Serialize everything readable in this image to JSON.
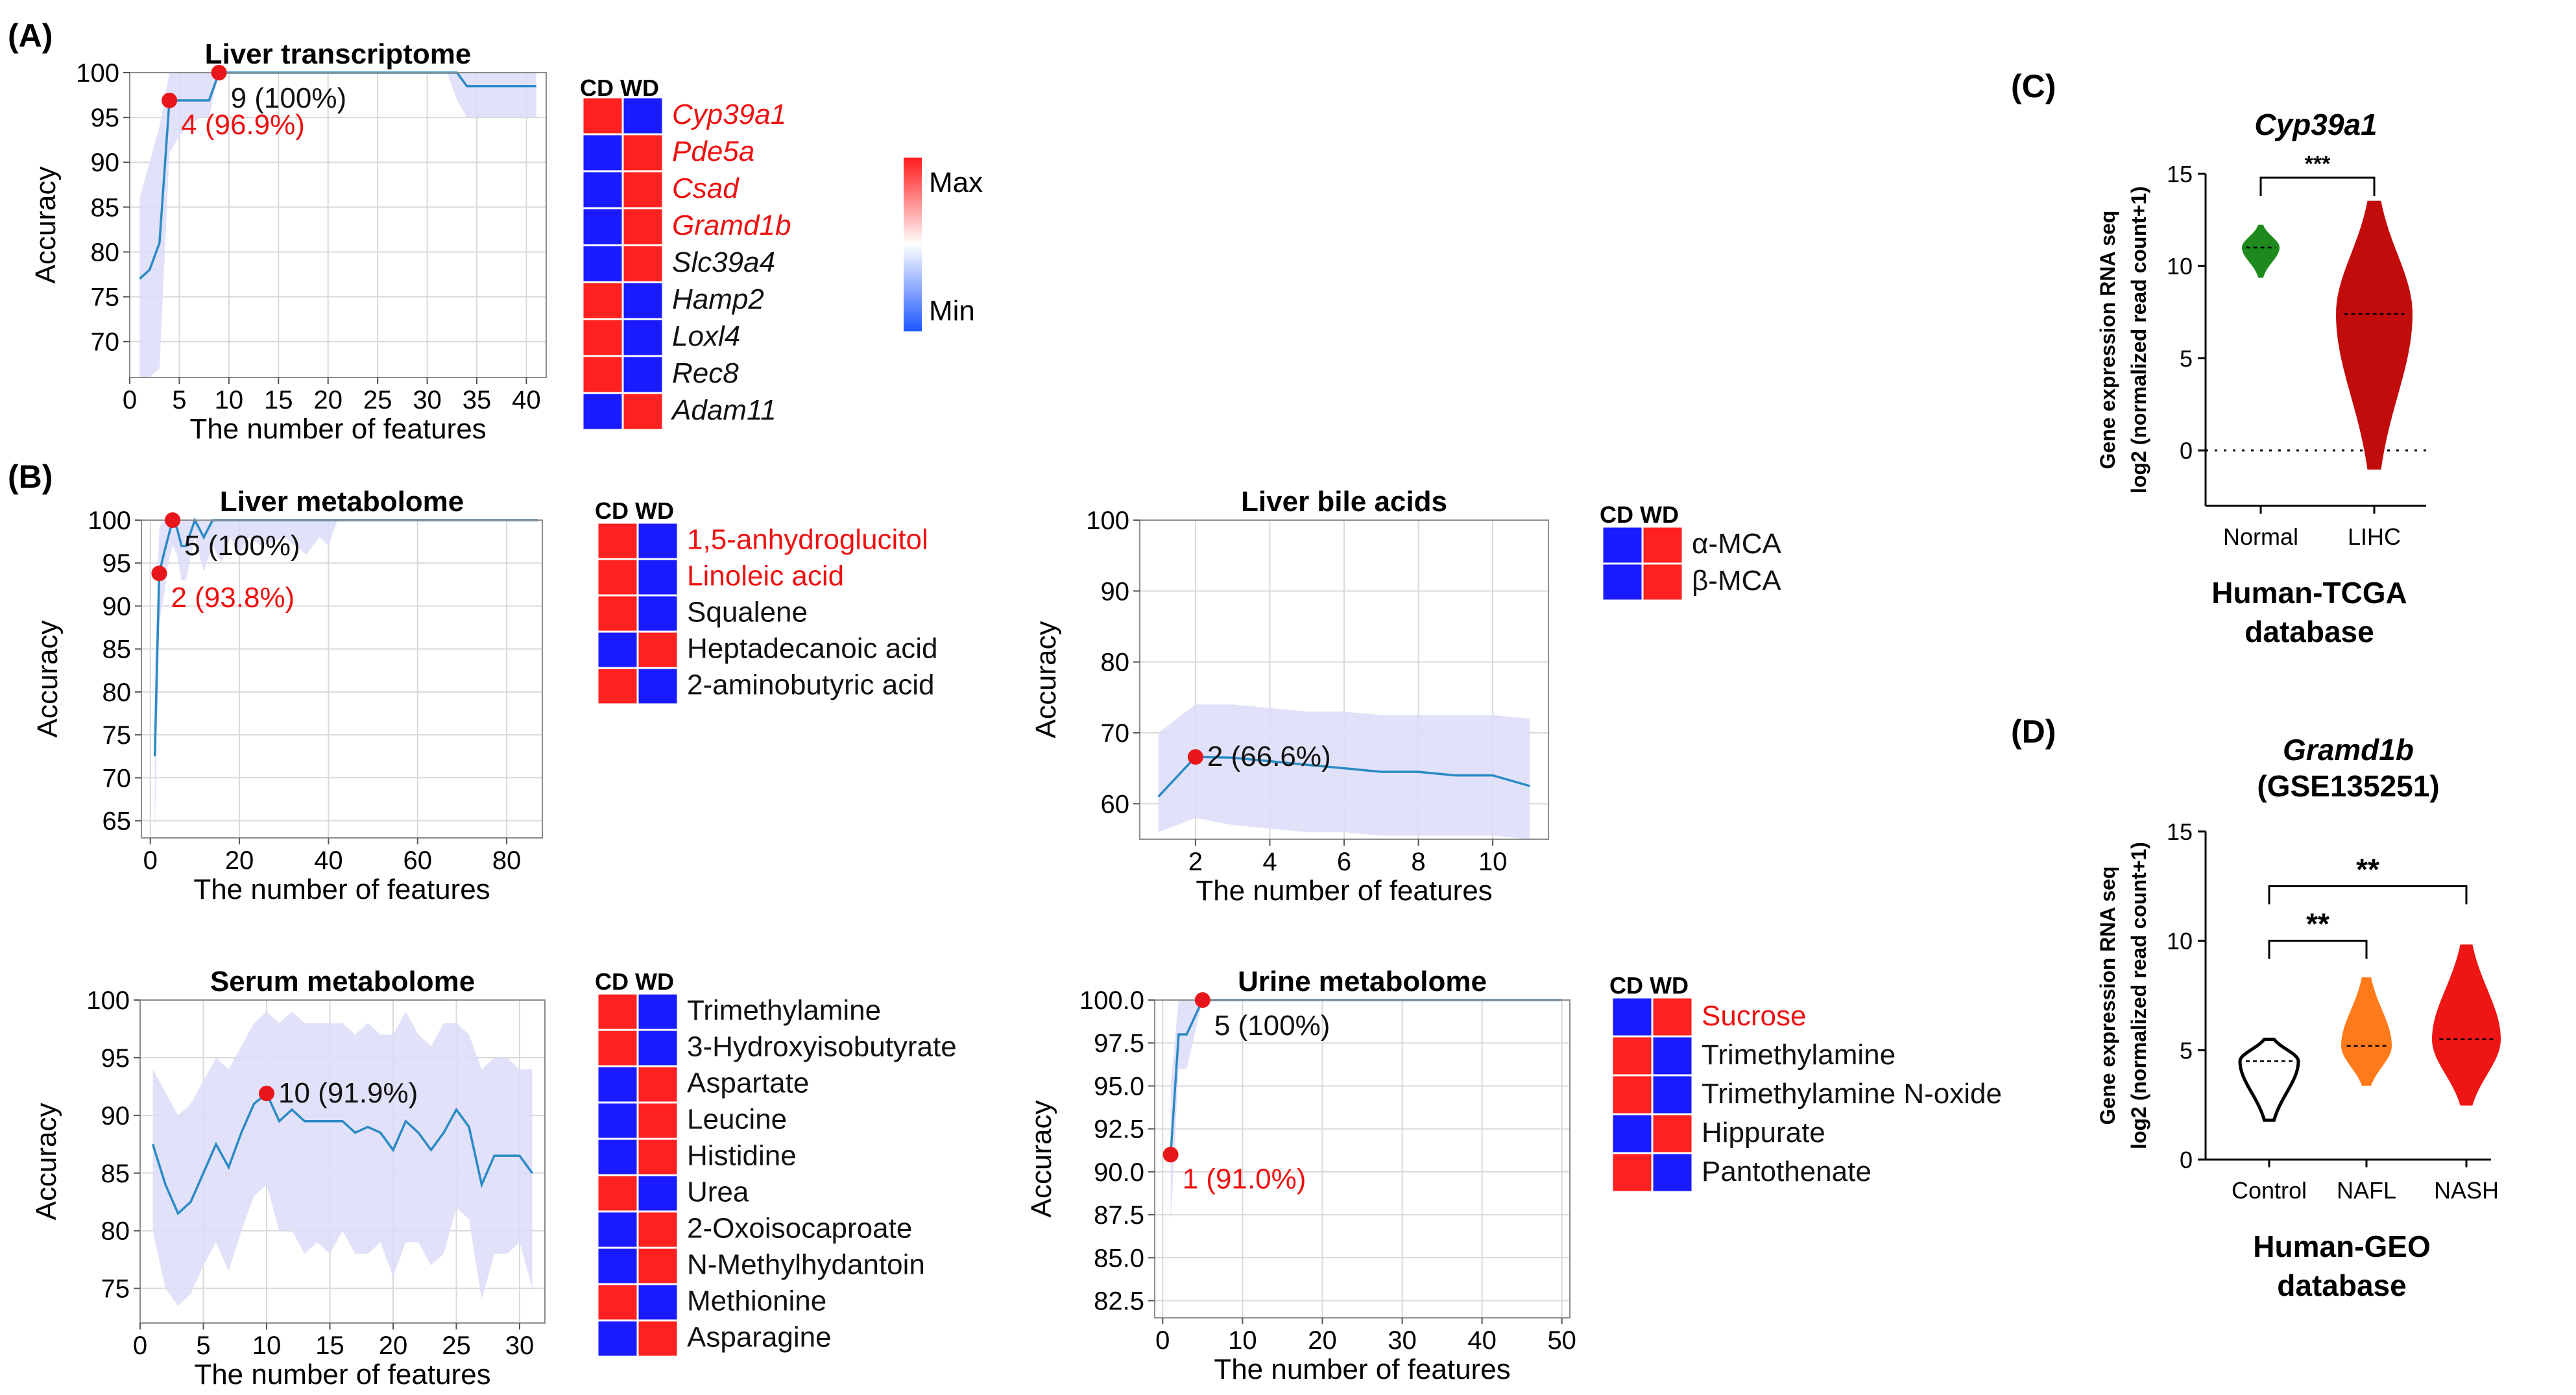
{
  "panel_labels": {
    "A": "(A)",
    "B": "(B)",
    "C": "(C)",
    "D": "(D)"
  },
  "colors": {
    "line": "#2a8ac4",
    "band": "#dcdcf8",
    "grid": "#d9d9d9",
    "point": "#e8161a",
    "cd_wd_red": "#ff2020",
    "cd_wd_blue": "#1a1aff",
    "highlight_text": "#ee1111",
    "violin_green": "#1e8a1e",
    "violin_darkred": "#c20c0c",
    "violin_orange": "#ff7a1a",
    "violin_red": "#ee1515"
  },
  "chart_data": [
    {
      "id": "liver_transcriptome",
      "type": "line",
      "title": "Liver transcriptome",
      "xlabel": "The number of features",
      "ylabel": "Accuracy",
      "xlim": [
        0,
        42
      ],
      "ylim": [
        66,
        100
      ],
      "xticks": [
        0,
        5,
        10,
        15,
        20,
        25,
        30,
        35,
        40
      ],
      "yticks": [
        70,
        75,
        80,
        85,
        90,
        95,
        100
      ],
      "x": [
        1,
        2,
        3,
        4,
        5,
        6,
        7,
        8,
        9,
        10,
        12,
        15,
        20,
        25,
        30,
        32,
        33,
        34,
        36,
        38,
        41
      ],
      "values": [
        77,
        78,
        81,
        96.9,
        96.9,
        96.9,
        96.9,
        96.9,
        100,
        100,
        100,
        100,
        100,
        100,
        100,
        100,
        100,
        98.5,
        98.5,
        98.5,
        98.5
      ],
      "band_low": [
        66,
        66,
        67,
        91,
        93,
        94,
        95,
        95,
        100,
        100,
        100,
        100,
        100,
        100,
        100,
        100,
        97,
        95,
        95,
        95,
        95
      ],
      "band_high": [
        86,
        90,
        94,
        100,
        100,
        100,
        100,
        100,
        100,
        100,
        100,
        100,
        100,
        100,
        100,
        100,
        100,
        100,
        100,
        100,
        100
      ],
      "annotations": [
        {
          "x": 4,
          "y": 96.9,
          "label": "4 (96.9%)",
          "color": "red"
        },
        {
          "x": 9,
          "y": 100,
          "label": "9 (100%)",
          "color": "black"
        }
      ]
    },
    {
      "id": "liver_metabolome",
      "type": "line",
      "title": "Liver metabolome",
      "xlabel": "The number of features",
      "ylabel": "Accuracy",
      "xlim": [
        -2,
        88
      ],
      "ylim": [
        63,
        100
      ],
      "xticks": [
        0,
        20,
        40,
        60,
        80
      ],
      "yticks": [
        65,
        70,
        75,
        80,
        85,
        90,
        95,
        100
      ],
      "x": [
        1,
        2,
        3,
        4,
        5,
        6,
        7,
        8,
        10,
        12,
        14,
        16,
        18,
        20,
        22,
        25,
        30,
        35,
        38,
        40,
        42,
        50,
        60,
        70,
        87
      ],
      "values": [
        72.5,
        93.8,
        96,
        98,
        100,
        99,
        97,
        97,
        100,
        98,
        100,
        100,
        100,
        100,
        100,
        100,
        100,
        100,
        100,
        100,
        100,
        100,
        100,
        100,
        100
      ],
      "band_low": [
        63,
        88,
        91,
        95,
        97,
        96,
        93,
        93,
        98,
        94,
        97,
        95,
        98,
        96,
        98,
        97,
        98,
        96,
        98,
        97,
        100,
        100,
        100,
        100,
        100
      ],
      "band_high": [
        82,
        99,
        100,
        100,
        100,
        100,
        100,
        100,
        100,
        100,
        100,
        100,
        100,
        100,
        100,
        100,
        100,
        100,
        100,
        100,
        100,
        100,
        100,
        100,
        100
      ],
      "annotations": [
        {
          "x": 2,
          "y": 93.8,
          "label": "2 (93.8%)",
          "color": "red"
        },
        {
          "x": 5,
          "y": 100,
          "label": "5 (100%)",
          "color": "black"
        }
      ]
    },
    {
      "id": "liver_bile_acids",
      "type": "line",
      "title": "Liver bile acids",
      "xlabel": "The number of features",
      "ylabel": "Accuracy",
      "xlim": [
        0.5,
        11.5
      ],
      "ylim": [
        55,
        100
      ],
      "xticks": [
        2,
        4,
        6,
        8,
        10
      ],
      "yticks": [
        60,
        70,
        80,
        90,
        100
      ],
      "x": [
        1,
        2,
        3,
        4,
        5,
        6,
        7,
        8,
        9,
        10,
        11
      ],
      "values": [
        61,
        66.6,
        66.5,
        66,
        65.5,
        65,
        64.5,
        64.5,
        64,
        64,
        62.5
      ],
      "band_low": [
        56,
        58,
        57,
        56.5,
        56,
        56,
        55.5,
        55.5,
        55.5,
        55.5,
        55
      ],
      "band_high": [
        70,
        74,
        74,
        73.5,
        73,
        73,
        72.5,
        72.5,
        72.5,
        72.5,
        72
      ],
      "annotations": [
        {
          "x": 2,
          "y": 66.6,
          "label": "2 (66.6%)",
          "color": "black"
        }
      ]
    },
    {
      "id": "serum_metabolome",
      "type": "line",
      "title": "Serum metabolome",
      "xlabel": "The number of features",
      "ylabel": "Accuracy",
      "xlim": [
        0,
        32
      ],
      "ylim": [
        72,
        100
      ],
      "xticks": [
        0,
        5,
        10,
        15,
        20,
        25,
        30
      ],
      "yticks": [
        75,
        80,
        85,
        90,
        95,
        100
      ],
      "x": [
        1,
        2,
        3,
        4,
        5,
        6,
        7,
        8,
        9,
        10,
        11,
        12,
        13,
        14,
        15,
        16,
        17,
        18,
        19,
        20,
        21,
        22,
        23,
        24,
        25,
        26,
        27,
        28,
        29,
        30,
        31
      ],
      "values": [
        87.5,
        84,
        81.5,
        82.5,
        85,
        87.5,
        85.5,
        88.5,
        91,
        91.9,
        89.5,
        90.5,
        89.5,
        89.5,
        89.5,
        89.5,
        88.5,
        89,
        88.5,
        87,
        89.5,
        88.5,
        87,
        88.5,
        90.5,
        89,
        84,
        86.5,
        86.5,
        86.5,
        85
      ],
      "band_low": [
        80,
        75,
        73.5,
        74.5,
        77,
        79,
        76.5,
        80,
        83,
        84,
        80,
        80,
        78,
        79,
        78,
        80,
        78,
        78,
        79,
        76,
        79,
        79,
        77,
        78,
        82,
        81,
        74,
        78,
        78,
        79,
        75
      ],
      "band_high": [
        94,
        92,
        90,
        91,
        93,
        95,
        94,
        96,
        98,
        99,
        98,
        99,
        98,
        98,
        98,
        98,
        97,
        98,
        97,
        97,
        99,
        97,
        96,
        98,
        98,
        97,
        94,
        95,
        95,
        94,
        94
      ],
      "annotations": [
        {
          "x": 10,
          "y": 91.9,
          "label": "10 (91.9%)",
          "color": "black"
        }
      ]
    },
    {
      "id": "urine_metabolome",
      "type": "line",
      "title": "Urine metabolome",
      "xlabel": "The number of features",
      "ylabel": "Accuracy",
      "xlim": [
        -1,
        51
      ],
      "ylim": [
        81.5,
        100
      ],
      "xticks": [
        0,
        10,
        20,
        30,
        40,
        50
      ],
      "yticks": [
        82.5,
        85.0,
        87.5,
        90.0,
        92.5,
        95.0,
        97.5,
        100.0
      ],
      "x": [
        1,
        2,
        3,
        4,
        5,
        6,
        8,
        10,
        20,
        30,
        40,
        50
      ],
      "values": [
        91.0,
        98,
        98,
        99,
        100,
        100,
        100,
        100,
        100,
        100,
        100,
        100
      ],
      "band_low": [
        87,
        96,
        96,
        98,
        100,
        100,
        100,
        100,
        100,
        100,
        100,
        100
      ],
      "band_high": [
        95,
        100,
        100,
        100,
        100,
        100,
        100,
        100,
        100,
        100,
        100,
        100
      ],
      "annotations": [
        {
          "x": 1,
          "y": 91.0,
          "label": "1 (91.0%)",
          "color": "red"
        },
        {
          "x": 5,
          "y": 100,
          "label": "5 (100%)",
          "color": "black"
        }
      ]
    },
    {
      "id": "cyp39a1_tcga",
      "type": "violin",
      "title": "Cyp39a1",
      "ylabel_line1": "Gene expression RNA seq",
      "ylabel_line2": "log2 (normalized read count+1)",
      "xlabel_line1": "Human-TCGA",
      "xlabel_line2": "database",
      "ylim": [
        -3,
        15
      ],
      "yticks": [
        0,
        5,
        10,
        15
      ],
      "categories": [
        "Normal",
        "LIHC"
      ],
      "groups": [
        {
          "name": "Normal",
          "min": 9.4,
          "max": 12.2,
          "median": 11.0,
          "color": "green"
        },
        {
          "name": "LIHC",
          "min": -1.0,
          "max": 13.5,
          "median": 7.4,
          "color": "darkred"
        }
      ],
      "reference_line": 0,
      "significance": [
        {
          "from": "Normal",
          "to": "LIHC",
          "label": "***"
        }
      ]
    },
    {
      "id": "gramd1b_geo",
      "type": "violin",
      "title": "Gramd1b",
      "subtitle": "(GSE135251)",
      "ylabel_line1": "Gene expression RNA seq",
      "ylabel_line2": "log2 (normalized read count+1)",
      "xlabel_line1": "Human-GEO",
      "xlabel_line2": "database",
      "ylim": [
        0,
        15
      ],
      "yticks": [
        0,
        5,
        10,
        15
      ],
      "categories": [
        "Control",
        "NAFL",
        "NASH"
      ],
      "groups": [
        {
          "name": "Control",
          "min": 1.8,
          "max": 5.5,
          "median": 4.5,
          "color": "white"
        },
        {
          "name": "NAFL",
          "min": 3.4,
          "max": 8.3,
          "median": 5.2,
          "color": "orange"
        },
        {
          "name": "NASH",
          "min": 2.5,
          "max": 9.8,
          "median": 5.5,
          "color": "red"
        }
      ],
      "significance": [
        {
          "from": "Control",
          "to": "NAFL",
          "label": "**"
        },
        {
          "from": "Control",
          "to": "NASH",
          "label": "**"
        }
      ]
    }
  ],
  "heatmaps": [
    {
      "id": "transcriptome_heatmap",
      "header": "CD WD",
      "italic": true,
      "rows": [
        {
          "label": "Cyp39a1",
          "cd": "red",
          "wd": "blue",
          "highlight": true
        },
        {
          "label": "Pde5a",
          "cd": "blue",
          "wd": "red",
          "highlight": true
        },
        {
          "label": "Csad",
          "cd": "blue",
          "wd": "red",
          "highlight": true
        },
        {
          "label": "Gramd1b",
          "cd": "blue",
          "wd": "red",
          "highlight": true
        },
        {
          "label": "Slc39a4",
          "cd": "blue",
          "wd": "red",
          "highlight": false
        },
        {
          "label": "Hamp2",
          "cd": "red",
          "wd": "blue",
          "highlight": false
        },
        {
          "label": "Loxl4",
          "cd": "red",
          "wd": "blue",
          "highlight": false
        },
        {
          "label": "Rec8",
          "cd": "red",
          "wd": "blue",
          "highlight": false
        },
        {
          "label": "Adam11",
          "cd": "blue",
          "wd": "red",
          "highlight": false
        }
      ]
    },
    {
      "id": "liver_metabolome_heatmap",
      "header": "CD WD",
      "italic": false,
      "rows": [
        {
          "label": "1,5-anhydroglucitol",
          "cd": "red",
          "wd": "blue",
          "highlight": true
        },
        {
          "label": "Linoleic acid",
          "cd": "red",
          "wd": "blue",
          "highlight": true
        },
        {
          "label": "Squalene",
          "cd": "red",
          "wd": "blue",
          "highlight": false
        },
        {
          "label": "Heptadecanoic acid",
          "cd": "blue",
          "wd": "red",
          "highlight": false
        },
        {
          "label": "2-aminobutyric acid",
          "cd": "red",
          "wd": "blue",
          "highlight": false
        }
      ]
    },
    {
      "id": "bile_acids_heatmap",
      "header": "CD WD",
      "italic": false,
      "rows": [
        {
          "label": "α-MCA",
          "cd": "blue",
          "wd": "red",
          "highlight": false
        },
        {
          "label": "β-MCA",
          "cd": "blue",
          "wd": "red",
          "highlight": false
        }
      ]
    },
    {
      "id": "serum_heatmap",
      "header": "CD WD",
      "italic": false,
      "rows": [
        {
          "label": "Trimethylamine",
          "cd": "red",
          "wd": "blue",
          "highlight": false
        },
        {
          "label": "3-Hydroxyisobutyrate",
          "cd": "red",
          "wd": "blue",
          "highlight": false
        },
        {
          "label": "Aspartate",
          "cd": "blue",
          "wd": "red",
          "highlight": false
        },
        {
          "label": "Leucine",
          "cd": "blue",
          "wd": "red",
          "highlight": false
        },
        {
          "label": "Histidine",
          "cd": "blue",
          "wd": "red",
          "highlight": false
        },
        {
          "label": "Urea",
          "cd": "red",
          "wd": "blue",
          "highlight": false
        },
        {
          "label": "2-Oxoisocaproate",
          "cd": "blue",
          "wd": "red",
          "highlight": false
        },
        {
          "label": "N-Methylhydantoin",
          "cd": "blue",
          "wd": "red",
          "highlight": false
        },
        {
          "label": "Methionine",
          "cd": "red",
          "wd": "blue",
          "highlight": false
        },
        {
          "label": "Asparagine",
          "cd": "blue",
          "wd": "red",
          "highlight": false
        }
      ]
    },
    {
      "id": "urine_heatmap",
      "header": "CD WD",
      "italic": false,
      "rows": [
        {
          "label": "Sucrose",
          "cd": "blue",
          "wd": "red",
          "highlight": true
        },
        {
          "label": "Trimethylamine",
          "cd": "red",
          "wd": "blue",
          "highlight": false
        },
        {
          "label": "Trimethylamine N-oxide",
          "cd": "red",
          "wd": "blue",
          "highlight": false
        },
        {
          "label": "Hippurate",
          "cd": "blue",
          "wd": "red",
          "highlight": false
        },
        {
          "label": "Pantothenate",
          "cd": "red",
          "wd": "blue",
          "highlight": false
        }
      ]
    }
  ],
  "colorbar": {
    "max_label": "Max",
    "min_label": "Min"
  }
}
